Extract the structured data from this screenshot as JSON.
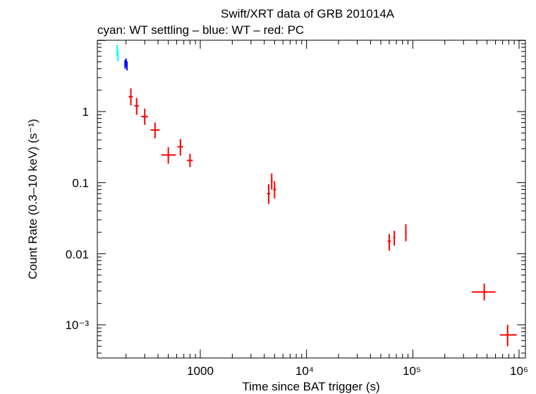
{
  "chart_data": {
    "type": "scatter",
    "title": "Swift/XRT data of GRB 201014A",
    "subtitle": "cyan: WT settling – blue: WT – red: PC",
    "xlabel": "Time since BAT trigger (s)",
    "ylabel": "Count Rate (0.3–10 keV) (s⁻¹)",
    "xscale": "log",
    "yscale": "log",
    "xlim": [
      140,
      1000000
    ],
    "ylim": [
      0.00035,
      8
    ],
    "x_tick_labels": [
      "1000",
      "10⁴",
      "10⁵",
      "10⁶"
    ],
    "y_tick_labels": [
      "10⁻³",
      "0.01",
      "0.1",
      "1"
    ],
    "grid": false,
    "series": [
      {
        "name": "WT settling",
        "color": "#00ffff",
        "points": [
          {
            "x": 165,
            "y": 7.2,
            "xerr": [
              2,
              2
            ],
            "yerr": [
              1.2,
              1.5
            ]
          },
          {
            "x": 168,
            "y": 6.1,
            "xerr": [
              2,
              2
            ],
            "yerr": [
              1.0,
              1.2
            ]
          }
        ]
      },
      {
        "name": "WT",
        "color": "#0000ff",
        "points": [
          {
            "x": 196,
            "y": 4.6,
            "xerr": [
              3,
              3
            ],
            "yerr": [
              0.6,
              0.7
            ]
          },
          {
            "x": 200,
            "y": 4.9,
            "xerr": [
              3,
              3
            ],
            "yerr": [
              0.6,
              0.7
            ]
          },
          {
            "x": 204,
            "y": 4.4,
            "xerr": [
              3,
              3
            ],
            "yerr": [
              0.6,
              0.7
            ]
          }
        ]
      },
      {
        "name": "PC",
        "color": "#ff0000",
        "points": [
          {
            "x": 222,
            "y": 1.62,
            "xerr": [
              10,
              10
            ],
            "yerr": [
              0.4,
              0.5
            ]
          },
          {
            "x": 252,
            "y": 1.2,
            "xerr": [
              12,
              12
            ],
            "yerr": [
              0.3,
              0.35
            ]
          },
          {
            "x": 300,
            "y": 0.85,
            "xerr": [
              22,
              22
            ],
            "yerr": [
              0.2,
              0.25
            ]
          },
          {
            "x": 375,
            "y": 0.55,
            "xerr": [
              35,
              40
            ],
            "yerr": [
              0.13,
              0.15
            ]
          },
          {
            "x": 500,
            "y": 0.245,
            "xerr": [
              70,
              90
            ],
            "yerr": [
              0.06,
              0.07
            ]
          },
          {
            "x": 650,
            "y": 0.32,
            "xerr": [
              40,
              40
            ],
            "yerr": [
              0.08,
              0.09
            ]
          },
          {
            "x": 800,
            "y": 0.205,
            "xerr": [
              50,
              50
            ],
            "yerr": [
              0.04,
              0.05
            ]
          },
          {
            "x": 4400,
            "y": 0.07,
            "xerr": [
              150,
              150
            ],
            "yerr": [
              0.02,
              0.025
            ]
          },
          {
            "x": 4700,
            "y": 0.105,
            "xerr": [
              100,
              100
            ],
            "yerr": [
              0.025,
              0.03
            ]
          },
          {
            "x": 5000,
            "y": 0.08,
            "xerr": [
              150,
              150
            ],
            "yerr": [
              0.02,
              0.025
            ]
          },
          {
            "x": 60000,
            "y": 0.015,
            "xerr": [
              2000,
              2000
            ],
            "yerr": [
              0.004,
              0.004
            ]
          },
          {
            "x": 67000,
            "y": 0.017,
            "xerr": [
              1500,
              1500
            ],
            "yerr": [
              0.004,
              0.004
            ]
          },
          {
            "x": 86000,
            "y": 0.02,
            "xerr": [
              1500,
              1500
            ],
            "yerr": [
              0.005,
              0.006
            ]
          },
          {
            "x": 470000,
            "y": 0.0029,
            "xerr": [
              110000,
              130000
            ],
            "yerr": [
              0.0007,
              0.0009
            ]
          },
          {
            "x": 780000,
            "y": 0.00072,
            "xerr": [
              120000,
              170000
            ],
            "yerr": [
              0.00022,
              0.00028
            ]
          }
        ]
      }
    ]
  }
}
